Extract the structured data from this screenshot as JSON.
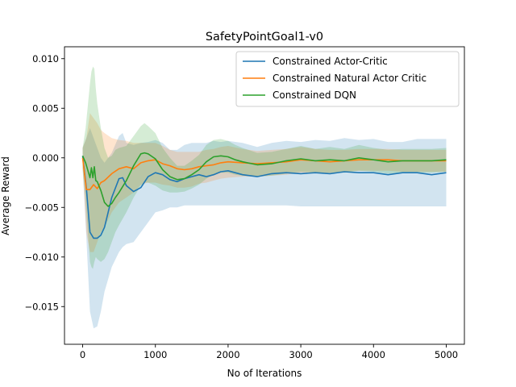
{
  "chart_data": {
    "type": "line",
    "title": "SafetyPointGoal1-v0",
    "xlabel": "No of Iterations",
    "ylabel": "Average Reward",
    "xlim": [
      -250,
      5250
    ],
    "ylim": [
      -0.0188,
      0.0112
    ],
    "xticks": [
      {
        "value": 0,
        "label": "0"
      },
      {
        "value": 1000,
        "label": "1000"
      },
      {
        "value": 2000,
        "label": "2000"
      },
      {
        "value": 3000,
        "label": "3000"
      },
      {
        "value": 4000,
        "label": "4000"
      },
      {
        "value": 5000,
        "label": "5000"
      }
    ],
    "yticks": [
      {
        "value": 0.01,
        "label": "0.010"
      },
      {
        "value": 0.005,
        "label": "0.005"
      },
      {
        "value": 0.0,
        "label": "0.000"
      },
      {
        "value": -0.005,
        "label": "−0.005"
      },
      {
        "value": -0.01,
        "label": "−0.010"
      },
      {
        "value": -0.015,
        "label": "−0.015"
      }
    ],
    "grid": false,
    "legend_position": "top-right",
    "series": [
      {
        "name": "Constrained Actor-Critic",
        "color": "#1f77b4",
        "x": [
          0,
          50,
          100,
          150,
          200,
          250,
          300,
          400,
          500,
          550,
          600,
          700,
          800,
          900,
          1000,
          1100,
          1200,
          1300,
          1400,
          1500,
          1600,
          1700,
          1800,
          1900,
          2000,
          2200,
          2400,
          2600,
          2800,
          3000,
          3200,
          3400,
          3600,
          3800,
          4000,
          4200,
          4400,
          4600,
          4800,
          5000
        ],
        "y": [
          0.0002,
          -0.003,
          -0.0075,
          -0.0081,
          -0.0081,
          -0.0078,
          -0.007,
          -0.004,
          -0.0021,
          -0.002,
          -0.0028,
          -0.0034,
          -0.003,
          -0.0019,
          -0.0015,
          -0.0017,
          -0.0022,
          -0.0024,
          -0.0021,
          -0.0019,
          -0.0017,
          -0.0019,
          -0.0017,
          -0.0014,
          -0.0013,
          -0.0017,
          -0.0019,
          -0.0016,
          -0.0015,
          -0.0016,
          -0.0015,
          -0.0016,
          -0.0014,
          -0.0015,
          -0.0015,
          -0.0017,
          -0.0015,
          -0.0015,
          -0.0017,
          -0.0015
        ],
        "lower": [
          -0.001,
          -0.008,
          -0.0155,
          -0.0172,
          -0.017,
          -0.0155,
          -0.0135,
          -0.011,
          -0.0095,
          -0.009,
          -0.0087,
          -0.0085,
          -0.0075,
          -0.0065,
          -0.0055,
          -0.0053,
          -0.005,
          -0.005,
          -0.0048,
          -0.0048,
          -0.0048,
          -0.0048,
          -0.0048,
          -0.0048,
          -0.0048,
          -0.0048,
          -0.0048,
          -0.0048,
          -0.0048,
          -0.0049,
          -0.0049,
          -0.0049,
          -0.0049,
          -0.0049,
          -0.0049,
          -0.0049,
          -0.0049,
          -0.0049,
          -0.0049,
          -0.0049
        ],
        "upper": [
          0.001,
          0.002,
          0.003,
          0.002,
          0.001,
          0.0,
          -0.0005,
          0.0005,
          0.0022,
          0.0025,
          0.0015,
          0.0013,
          0.0015,
          0.0016,
          0.0018,
          0.0015,
          0.0008,
          0.0008,
          0.0013,
          0.0015,
          0.0015,
          0.0015,
          0.0017,
          0.0016,
          0.0017,
          0.0015,
          0.0011,
          0.0015,
          0.0017,
          0.0016,
          0.0018,
          0.0017,
          0.002,
          0.0018,
          0.0019,
          0.0016,
          0.0016,
          0.0019,
          0.0019,
          0.0019
        ]
      },
      {
        "name": "Constrained Natural Actor Critic",
        "color": "#ff7f0e",
        "x": [
          0,
          50,
          100,
          150,
          200,
          250,
          300,
          400,
          500,
          600,
          700,
          800,
          900,
          1000,
          1100,
          1200,
          1300,
          1400,
          1500,
          1600,
          1700,
          1800,
          1900,
          2000,
          2200,
          2400,
          2600,
          2800,
          3000,
          3200,
          3400,
          3600,
          3800,
          4000,
          4200,
          4400,
          4600,
          4800,
          5000
        ],
        "y": [
          0.0,
          -0.0032,
          -0.0032,
          -0.0027,
          -0.0031,
          -0.0025,
          -0.0023,
          -0.0016,
          -0.0011,
          -0.0009,
          -0.0011,
          -0.0005,
          -0.0003,
          -0.0002,
          -0.0006,
          -0.0008,
          -0.0011,
          -0.0012,
          -0.0011,
          -0.0009,
          -0.0008,
          -0.0007,
          -0.0005,
          -0.0004,
          -0.0005,
          -0.0006,
          -0.0005,
          -0.0004,
          -0.0002,
          -0.0003,
          -0.0004,
          -0.0003,
          -0.0002,
          -0.0002,
          -0.0002,
          -0.0003,
          -0.0003,
          -0.0003,
          -0.0003
        ],
        "lower": [
          -0.001,
          -0.0075,
          -0.0095,
          -0.0095,
          -0.0085,
          -0.0075,
          -0.007,
          -0.0055,
          -0.0045,
          -0.004,
          -0.0035,
          -0.0027,
          -0.0025,
          -0.0025,
          -0.0027,
          -0.0028,
          -0.003,
          -0.003,
          -0.0029,
          -0.0026,
          -0.0025,
          -0.0023,
          -0.0021,
          -0.002,
          -0.0019,
          -0.0019,
          -0.0018,
          -0.0017,
          -0.0015,
          -0.0015,
          -0.0016,
          -0.0014,
          -0.0013,
          -0.0013,
          -0.0013,
          -0.0014,
          -0.0014,
          -0.0014,
          -0.0014
        ],
        "upper": [
          0.001,
          0.002,
          0.0045,
          0.004,
          0.0035,
          0.0028,
          0.0025,
          0.002,
          0.0018,
          0.0017,
          0.0015,
          0.0015,
          0.0015,
          0.0015,
          0.0012,
          0.0008,
          0.0006,
          0.0006,
          0.0006,
          0.0006,
          0.0008,
          0.0009,
          0.0011,
          0.0012,
          0.0009,
          0.0007,
          0.0008,
          0.0009,
          0.0011,
          0.0009,
          0.0008,
          0.0008,
          0.0009,
          0.0009,
          0.0009,
          0.0008,
          0.0008,
          0.0008,
          0.0008
        ]
      },
      {
        "name": "Constrained DQN",
        "color": "#2ca02c",
        "x": [
          0,
          40,
          80,
          100,
          120,
          140,
          160,
          180,
          200,
          250,
          300,
          350,
          400,
          450,
          500,
          600,
          700,
          800,
          850,
          900,
          1000,
          1100,
          1200,
          1300,
          1400,
          1500,
          1600,
          1700,
          1800,
          1900,
          2000,
          2100,
          2200,
          2400,
          2600,
          2800,
          3000,
          3200,
          3400,
          3600,
          3800,
          4000,
          4200,
          4400,
          4600,
          4800,
          5000
        ],
        "y": [
          0.0002,
          -0.0005,
          -0.0015,
          -0.002,
          -0.001,
          -0.002,
          -0.0009,
          -0.0023,
          -0.0024,
          -0.0033,
          -0.0045,
          -0.0049,
          -0.0046,
          -0.004,
          -0.0035,
          -0.0023,
          -0.0008,
          0.0004,
          0.0005,
          0.0004,
          -0.0001,
          -0.0012,
          -0.0019,
          -0.0022,
          -0.0021,
          -0.0017,
          -0.0012,
          -0.0004,
          0.0001,
          0.0002,
          0.0001,
          -0.0002,
          -0.0004,
          -0.0007,
          -0.0006,
          -0.0003,
          -0.0001,
          -0.0003,
          -0.0002,
          -0.0003,
          0.0,
          -0.0002,
          -0.0004,
          -0.0003,
          -0.0003,
          -0.0003,
          -0.0002
        ],
        "lower": [
          -0.001,
          -0.004,
          -0.0085,
          -0.0105,
          -0.011,
          -0.0112,
          -0.0105,
          -0.01,
          -0.0102,
          -0.0105,
          -0.0102,
          -0.0095,
          -0.0085,
          -0.0075,
          -0.0068,
          -0.0055,
          -0.004,
          -0.0028,
          -0.0025,
          -0.0025,
          -0.0028,
          -0.0033,
          -0.0035,
          -0.0035,
          -0.0034,
          -0.0031,
          -0.0027,
          -0.0021,
          -0.0017,
          -0.0015,
          -0.0015,
          -0.0017,
          -0.0018,
          -0.0019,
          -0.0018,
          -0.0016,
          -0.0014,
          -0.0015,
          -0.0015,
          -0.0015,
          -0.0013,
          -0.0014,
          -0.0016,
          -0.0015,
          -0.0015,
          -0.0015,
          -0.0014
        ],
        "upper": [
          0.001,
          0.003,
          0.006,
          0.0075,
          0.0087,
          0.0092,
          0.009,
          0.007,
          0.0055,
          0.003,
          0.001,
          0.0,
          0.0002,
          0.0008,
          0.001,
          0.0012,
          0.0022,
          0.0032,
          0.0035,
          0.0032,
          0.0025,
          0.001,
          0.0,
          -0.0008,
          -0.0008,
          -0.0003,
          0.0003,
          0.0013,
          0.0018,
          0.0019,
          0.0017,
          0.0013,
          0.001,
          0.0005,
          0.0006,
          0.0009,
          0.0012,
          0.0009,
          0.0011,
          0.0009,
          0.0013,
          0.001,
          0.0008,
          0.0009,
          0.0009,
          0.0009,
          0.001
        ]
      }
    ]
  }
}
